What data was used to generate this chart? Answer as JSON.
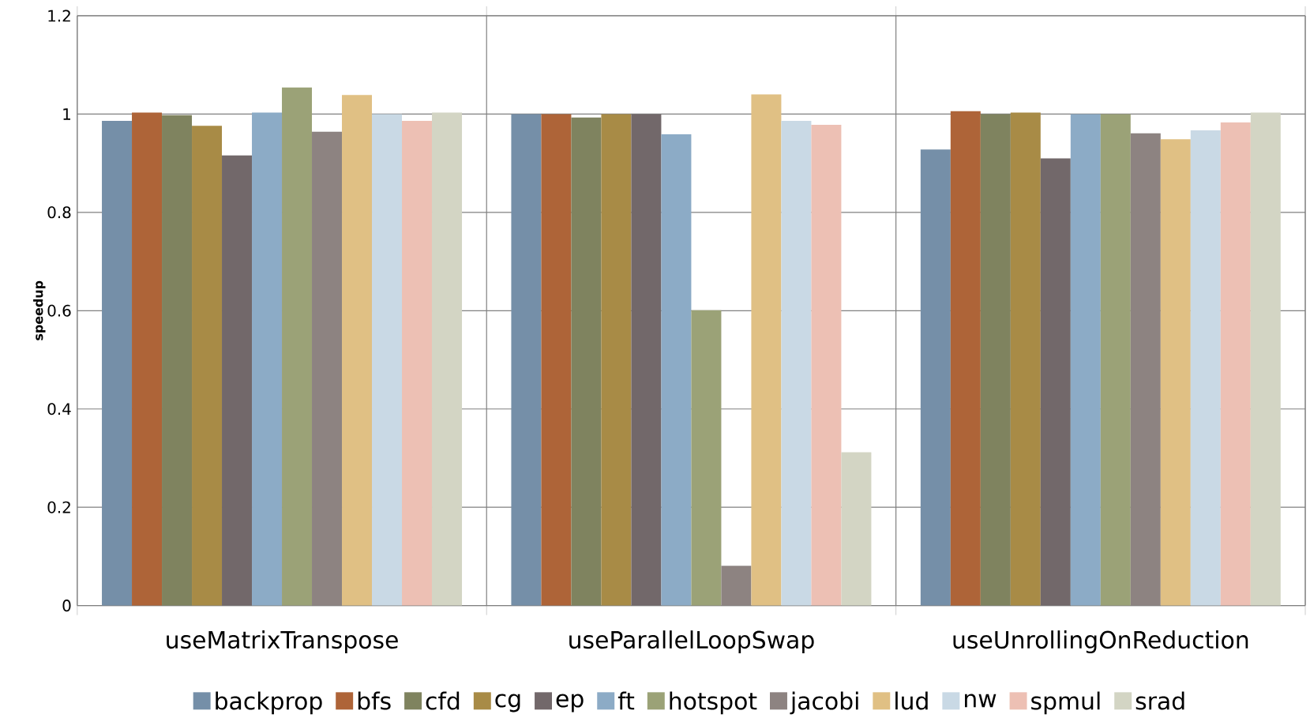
{
  "chart_data": {
    "type": "bar",
    "ylabel": "speedup",
    "categories": [
      "useMatrixTranspose",
      "useParallelLoopSwap",
      "useUnrollingOnReduction"
    ],
    "ylim": [
      0,
      1.2
    ],
    "yticks": [
      0,
      0.2,
      0.4,
      0.6,
      0.8,
      1,
      1.2
    ],
    "grid": true,
    "legend": "bottom",
    "series": [
      {
        "name": "backprop",
        "color": "#758fa8",
        "values": [
          0.986,
          1.0,
          0.928
        ]
      },
      {
        "name": "bfs",
        "color": "#ae6438",
        "values": [
          1.003,
          1.0,
          1.006
        ]
      },
      {
        "name": "cfd",
        "color": "#7f835f",
        "values": [
          0.998,
          0.993,
          1.0
        ]
      },
      {
        "name": "cg",
        "color": "#a88b46",
        "values": [
          0.976,
          1.0,
          1.003
        ]
      },
      {
        "name": "ep",
        "color": "#72686a",
        "values": [
          0.916,
          1.0,
          0.91
        ]
      },
      {
        "name": "ft",
        "color": "#8cabc6",
        "values": [
          1.003,
          0.959,
          1.0
        ]
      },
      {
        "name": "hotspot",
        "color": "#9ba277",
        "values": [
          1.054,
          0.601,
          1.0
        ]
      },
      {
        "name": "jacobi",
        "color": "#8d8381",
        "values": [
          0.964,
          0.081,
          0.961
        ]
      },
      {
        "name": "lud",
        "color": "#e0c084",
        "values": [
          1.039,
          1.04,
          0.949
        ]
      },
      {
        "name": "nw",
        "color": "#c9d9e5",
        "values": [
          1.0,
          0.986,
          0.967
        ]
      },
      {
        "name": "spmul",
        "color": "#edc0b4",
        "values": [
          0.986,
          0.978,
          0.983
        ]
      },
      {
        "name": "srad",
        "color": "#d3d5c4",
        "values": [
          1.003,
          0.312,
          1.003
        ]
      }
    ]
  }
}
